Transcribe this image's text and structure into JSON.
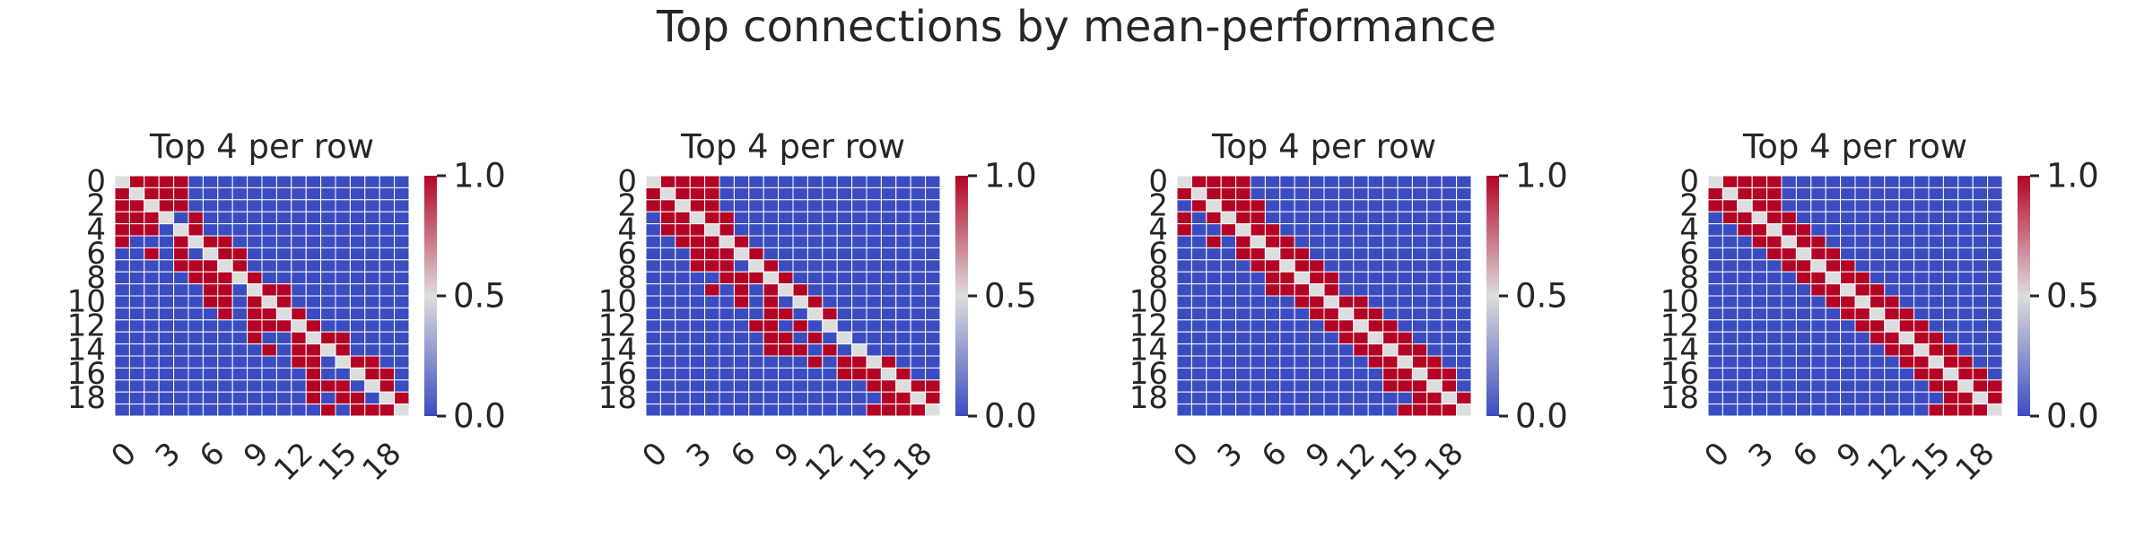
{
  "figure": {
    "title": "Top connections by mean-performance"
  },
  "chart_data": [
    {
      "type": "heatmap",
      "title": "Top 4 per row",
      "size": 20,
      "x_ticks": [
        "0",
        "3",
        "6",
        "9",
        "12",
        "15",
        "18"
      ],
      "y_ticks": [
        "0",
        "2",
        "4",
        "6",
        "8",
        "10",
        "12",
        "14",
        "16",
        "18"
      ],
      "colorbar": {
        "ticks": [
          "0.0",
          "0.5",
          "1.0"
        ],
        "range": [
          0,
          1
        ],
        "colors": [
          "#3b4cc0",
          "#dddddd",
          "#b40426"
        ]
      },
      "diagonal_value": 0.5,
      "top_per_row": [
        [
          1,
          2,
          3,
          4
        ],
        [
          0,
          2,
          3,
          4
        ],
        [
          0,
          1,
          3,
          4
        ],
        [
          0,
          1,
          2,
          5
        ],
        [
          0,
          1,
          2,
          5
        ],
        [
          0,
          4,
          6,
          7
        ],
        [
          2,
          4,
          7,
          8
        ],
        [
          4,
          5,
          6,
          8
        ],
        [
          5,
          6,
          7,
          9
        ],
        [
          6,
          7,
          10,
          11
        ],
        [
          6,
          7,
          9,
          11
        ],
        [
          7,
          9,
          10,
          12
        ],
        [
          9,
          10,
          11,
          13
        ],
        [
          9,
          12,
          14,
          15
        ],
        [
          10,
          12,
          13,
          15
        ],
        [
          12,
          13,
          16,
          17
        ],
        [
          13,
          16,
          17,
          18
        ],
        [
          13,
          14,
          15,
          18
        ],
        [
          13,
          15,
          16,
          19
        ],
        [
          14,
          16,
          17,
          18
        ]
      ]
    },
    {
      "type": "heatmap",
      "title": "Top 4 per row",
      "size": 20,
      "x_ticks": [
        "0",
        "3",
        "6",
        "9",
        "12",
        "15",
        "18"
      ],
      "y_ticks": [
        "0",
        "2",
        "4",
        "6",
        "8",
        "10",
        "12",
        "14",
        "16",
        "18"
      ],
      "colorbar": {
        "ticks": [
          "0.0",
          "0.5",
          "1.0"
        ],
        "range": [
          0,
          1
        ],
        "colors": [
          "#3b4cc0",
          "#dddddd",
          "#b40426"
        ]
      },
      "diagonal_value": 0.5,
      "top_per_row": [
        [
          1,
          2,
          3,
          4
        ],
        [
          0,
          2,
          3,
          4
        ],
        [
          0,
          1,
          3,
          4
        ],
        [
          1,
          2,
          4,
          5
        ],
        [
          1,
          2,
          3,
          5
        ],
        [
          2,
          3,
          4,
          6
        ],
        [
          3,
          4,
          5,
          7
        ],
        [
          3,
          4,
          5,
          8
        ],
        [
          5,
          6,
          7,
          9
        ],
        [
          4,
          6,
          8,
          10
        ],
        [
          6,
          8,
          10,
          11
        ],
        [
          8,
          9,
          11,
          12
        ],
        [
          7,
          8,
          10,
          12
        ],
        [
          8,
          9,
          11,
          13
        ],
        [
          8,
          9,
          10,
          12
        ],
        [
          11,
          13,
          14,
          16
        ],
        [
          13,
          14,
          15,
          17
        ],
        [
          15,
          16,
          18,
          19
        ],
        [
          16,
          17,
          18,
          19
        ],
        [
          15,
          16,
          17,
          18
        ]
      ]
    },
    {
      "type": "heatmap",
      "title": "Top 4 per row",
      "size": 20,
      "x_ticks": [
        "0",
        "3",
        "6",
        "9",
        "12",
        "15",
        "18"
      ],
      "y_ticks": [
        "0",
        "2",
        "4",
        "6",
        "8",
        "10",
        "12",
        "14",
        "16",
        "18"
      ],
      "colorbar": {
        "ticks": [
          "0.0",
          "0.5",
          "1.0"
        ],
        "range": [
          0,
          1
        ],
        "colors": [
          "#3b4cc0",
          "#dddddd",
          "#b40426"
        ]
      },
      "diagonal_value": 0.5,
      "top_per_row": [
        [
          1,
          2,
          3,
          4
        ],
        [
          0,
          2,
          3,
          4
        ],
        [
          1,
          3,
          4,
          5
        ],
        [
          0,
          2,
          4,
          5
        ],
        [
          0,
          3,
          5,
          6
        ],
        [
          2,
          4,
          6,
          7
        ],
        [
          4,
          5,
          7,
          8
        ],
        [
          5,
          6,
          8,
          9
        ],
        [
          6,
          7,
          9,
          10
        ],
        [
          6,
          7,
          8,
          10
        ],
        [
          8,
          9,
          11,
          12
        ],
        [
          9,
          10,
          12,
          13
        ],
        [
          10,
          11,
          13,
          14
        ],
        [
          11,
          12,
          14,
          15
        ],
        [
          12,
          13,
          15,
          16
        ],
        [
          13,
          14,
          16,
          17
        ],
        [
          14,
          15,
          17,
          18
        ],
        [
          14,
          15,
          16,
          18
        ],
        [
          16,
          17,
          18,
          19
        ],
        [
          15,
          16,
          17,
          18
        ]
      ]
    },
    {
      "type": "heatmap",
      "title": "Top 4 per row",
      "size": 20,
      "x_ticks": [
        "0",
        "3",
        "6",
        "9",
        "12",
        "15",
        "18"
      ],
      "y_ticks": [
        "0",
        "2",
        "4",
        "6",
        "8",
        "10",
        "12",
        "14",
        "16",
        "18"
      ],
      "colorbar": {
        "ticks": [
          "0.0",
          "0.5",
          "1.0"
        ],
        "range": [
          0,
          1
        ],
        "colors": [
          "#3b4cc0",
          "#dddddd",
          "#b40426"
        ]
      },
      "diagonal_value": 0.5,
      "top_per_row": [
        [
          1,
          2,
          3,
          4
        ],
        [
          0,
          2,
          3,
          4
        ],
        [
          0,
          1,
          3,
          4
        ],
        [
          1,
          2,
          4,
          5
        ],
        [
          2,
          3,
          5,
          6
        ],
        [
          3,
          4,
          6,
          7
        ],
        [
          4,
          5,
          7,
          8
        ],
        [
          5,
          6,
          8,
          9
        ],
        [
          6,
          7,
          9,
          10
        ],
        [
          7,
          8,
          10,
          11
        ],
        [
          8,
          9,
          11,
          12
        ],
        [
          9,
          10,
          12,
          13
        ],
        [
          10,
          11,
          13,
          14
        ],
        [
          11,
          12,
          14,
          15
        ],
        [
          12,
          13,
          15,
          16
        ],
        [
          13,
          14,
          16,
          17
        ],
        [
          14,
          15,
          17,
          18
        ],
        [
          15,
          16,
          18,
          19
        ],
        [
          16,
          17,
          18,
          19
        ],
        [
          15,
          16,
          17,
          18
        ]
      ]
    }
  ]
}
